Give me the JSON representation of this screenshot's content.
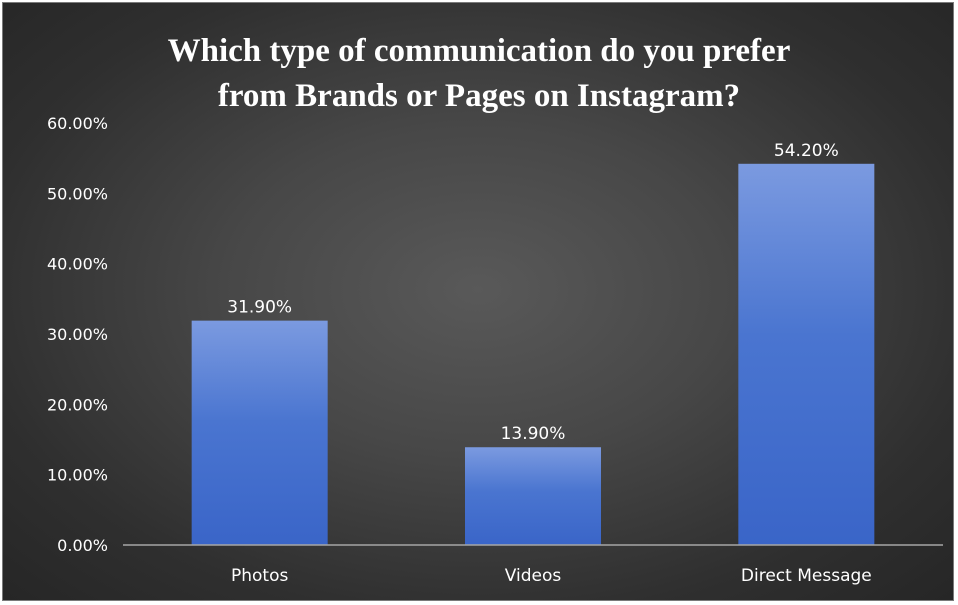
{
  "chart_data": {
    "type": "bar",
    "title_lines": [
      "Which type of communication do you prefer",
      "from Brands or Pages on Instagram?"
    ],
    "categories": [
      "Photos",
      "Videos",
      "Direct Message"
    ],
    "values": [
      31.9,
      13.9,
      54.2
    ],
    "data_labels": [
      "31.90%",
      "13.90%",
      "54.20%"
    ],
    "xlabel": "",
    "ylabel": "",
    "ylim": [
      0,
      60
    ],
    "y_ticks": [
      0,
      10,
      20,
      30,
      40,
      50,
      60
    ],
    "y_tick_labels": [
      "0.00%",
      "10.00%",
      "20.00%",
      "30.00%",
      "40.00%",
      "50.00%",
      "60.00%"
    ],
    "grid": false,
    "legend": "none",
    "colors": {
      "bar_top": "#7b9ae0",
      "bar_bottom": "#3a65c8",
      "background_center": "#595959",
      "background_edge": "#262626",
      "axis_line": "#a6a6a6",
      "text": "#ffffff"
    }
  }
}
